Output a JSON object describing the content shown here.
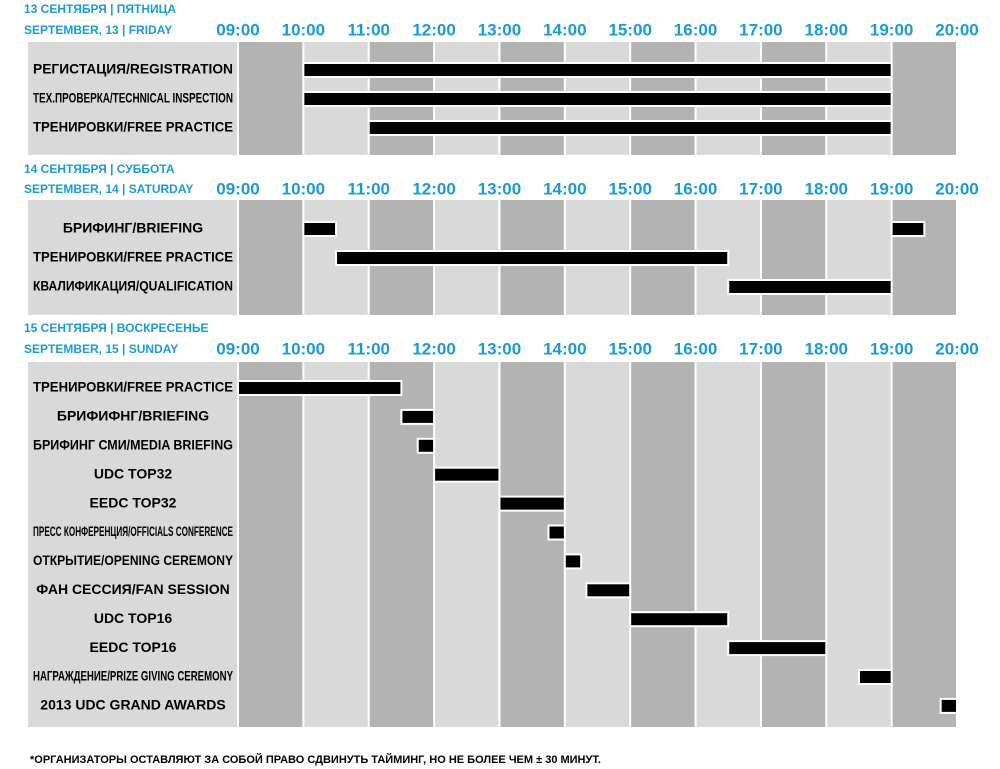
{
  "chart_data": [
    {
      "type": "gantt",
      "title": "13 СЕНТЯБРЯ | ПЯТНИЦА",
      "subtitle": "SEPTEMBER, 13 | FRIDAY",
      "xlim": [
        9,
        20
      ],
      "xticks": [
        {
          "value": 9,
          "label": "09:00"
        },
        {
          "value": 10,
          "label": "10:00"
        },
        {
          "value": 11,
          "label": "11:00"
        },
        {
          "value": 12,
          "label": "12:00"
        },
        {
          "value": 13,
          "label": "13:00"
        },
        {
          "value": 14,
          "label": "14:00"
        },
        {
          "value": 15,
          "label": "15:00"
        },
        {
          "value": 16,
          "label": "16:00"
        },
        {
          "value": 17,
          "label": "17:00"
        },
        {
          "value": 18,
          "label": "18:00"
        },
        {
          "value": 19,
          "label": "19:00"
        },
        {
          "value": 20,
          "label": "20:00"
        }
      ],
      "tasks": [
        {
          "name": "РЕГИСТАЦИЯ/REGISTRATION",
          "segments": [
            [
              10,
              19
            ]
          ]
        },
        {
          "name": "ТЕХ.ПРОВЕРКА/TECHNICAL INSPECTION",
          "segments": [
            [
              10,
              19
            ]
          ]
        },
        {
          "name": "ТРЕНИРОВКИ/FREE PRACTICE",
          "segments": [
            [
              11,
              19
            ]
          ]
        }
      ]
    },
    {
      "type": "gantt",
      "title": "14 СЕНТЯБРЯ | СУББОТА",
      "subtitle": "SEPTEMBER, 14 | SATURDAY",
      "xlim": [
        9,
        20
      ],
      "xticks": [
        {
          "value": 9,
          "label": "09:00"
        },
        {
          "value": 10,
          "label": "10:00"
        },
        {
          "value": 11,
          "label": "11:00"
        },
        {
          "value": 12,
          "label": "12:00"
        },
        {
          "value": 13,
          "label": "13:00"
        },
        {
          "value": 14,
          "label": "14:00"
        },
        {
          "value": 15,
          "label": "15:00"
        },
        {
          "value": 16,
          "label": "16:00"
        },
        {
          "value": 17,
          "label": "17:00"
        },
        {
          "value": 18,
          "label": "18:00"
        },
        {
          "value": 19,
          "label": "19:00"
        },
        {
          "value": 20,
          "label": "20:00"
        }
      ],
      "tasks": [
        {
          "name": "БРИФИНГ/BRIEFING",
          "segments": [
            [
              10,
              10.5
            ],
            [
              19,
              19.5
            ]
          ]
        },
        {
          "name": "ТРЕНИРОВКИ/FREE PRACTICE",
          "segments": [
            [
              10.5,
              16.5
            ]
          ]
        },
        {
          "name": "КВАЛИФИКАЦИЯ/QUALIFICATION",
          "segments": [
            [
              16.5,
              19
            ]
          ]
        }
      ]
    },
    {
      "type": "gantt",
      "title": "15 СЕНТЯБРЯ | ВОСКРЕСЕНЬЕ",
      "subtitle": "SEPTEMBER, 15 | SUNDAY",
      "xlim": [
        9,
        20
      ],
      "xticks": [
        {
          "value": 9,
          "label": "09:00"
        },
        {
          "value": 10,
          "label": "10:00"
        },
        {
          "value": 11,
          "label": "11:00"
        },
        {
          "value": 12,
          "label": "12:00"
        },
        {
          "value": 13,
          "label": "13:00"
        },
        {
          "value": 14,
          "label": "14:00"
        },
        {
          "value": 15,
          "label": "15:00"
        },
        {
          "value": 16,
          "label": "16:00"
        },
        {
          "value": 17,
          "label": "17:00"
        },
        {
          "value": 18,
          "label": "18:00"
        },
        {
          "value": 19,
          "label": "19:00"
        },
        {
          "value": 20,
          "label": "20:00"
        }
      ],
      "tasks": [
        {
          "name": "ТРЕНИРОВКИ/FREE PRACTICE",
          "segments": [
            [
              9,
              11.5
            ]
          ]
        },
        {
          "name": "БРИФИФНГ/BRIEFING",
          "segments": [
            [
              11.5,
              12
            ]
          ]
        },
        {
          "name": "БРИФИНГ СМИ/MEDIA BRIEFING",
          "segments": [
            [
              11.75,
              12
            ]
          ]
        },
        {
          "name": "UDC TOP32",
          "segments": [
            [
              12,
              13
            ]
          ]
        },
        {
          "name": "EEDC TOP32",
          "segments": [
            [
              13,
              14
            ]
          ]
        },
        {
          "name": "ПРЕСС КОНФЕРЕНЦИЯ/OFFICIALS CONFERENCE",
          "segments": [
            [
              13.75,
              14
            ]
          ]
        },
        {
          "name": "ОТКРЫТИЕ/OPENING CEREMONY",
          "segments": [
            [
              14,
              14.25
            ]
          ]
        },
        {
          "name": "ФАН СЕССИЯ/FAN SESSION",
          "segments": [
            [
              14.33,
              15
            ]
          ]
        },
        {
          "name": "UDC TOP16",
          "segments": [
            [
              15,
              16.5
            ]
          ]
        },
        {
          "name": "EEDC TOP16",
          "segments": [
            [
              16.5,
              18
            ]
          ]
        },
        {
          "name": "НАГРАЖДЕНИЕ/PRIZE GIVING CEREMONY",
          "segments": [
            [
              18.5,
              19
            ]
          ]
        },
        {
          "name": "2013 UDC GRAND AWARDS",
          "segments": [
            [
              19.75,
              20
            ]
          ]
        }
      ]
    }
  ],
  "footnote": "*ОРГАНИЗАТОРЫ ОСТАВЛЯЮТ ЗА СОБОЙ ПРАВО СДВИНУТЬ ТАЙМИНГ, НО НЕ БОЛЕЕ ЧЕМ ± 30 МИНУТ."
}
